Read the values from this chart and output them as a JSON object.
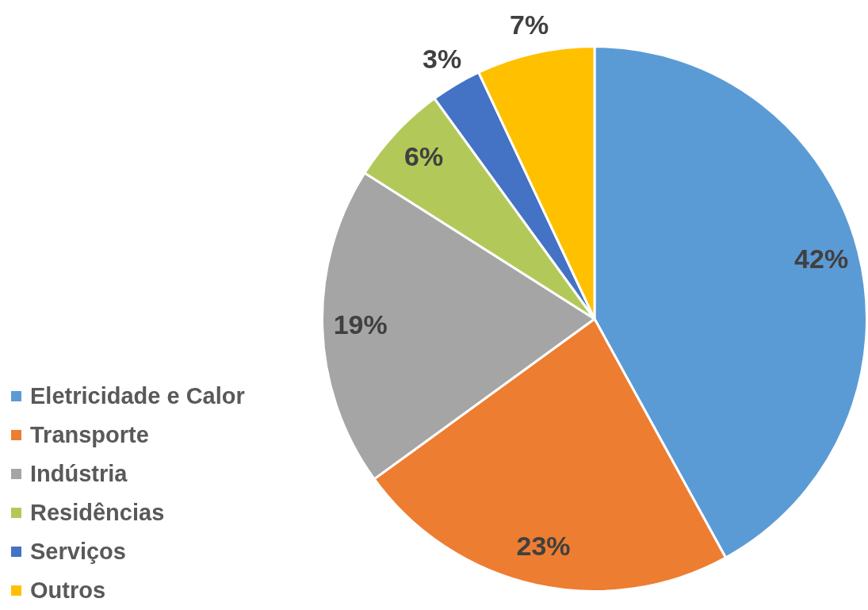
{
  "chart_data": {
    "type": "pie",
    "categories": [
      "Eletricidade e Calor",
      "Transporte",
      "Indústria",
      "Residências",
      "Serviços",
      "Outros"
    ],
    "values": [
      42,
      23,
      19,
      6,
      3,
      7
    ],
    "colors": [
      "#5b9bd5",
      "#ed7d31",
      "#a5a5a5",
      "#b2c95a",
      "#4472c4",
      "#ffc000"
    ],
    "value_labels": [
      "42%",
      "23%",
      "19%",
      "6%",
      "3%",
      "7%"
    ],
    "legend": "bottom left"
  }
}
